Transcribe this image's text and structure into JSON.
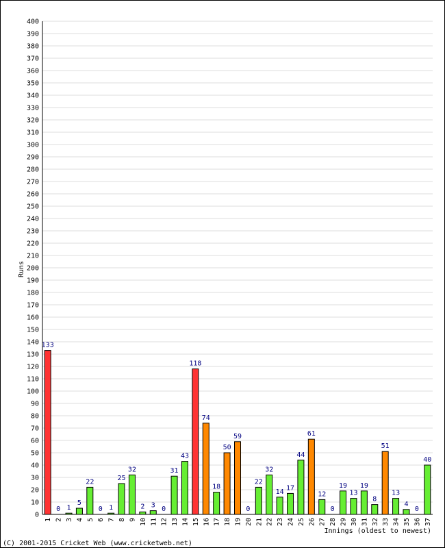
{
  "chart_data": {
    "type": "bar",
    "ylabel": "Runs",
    "xlabel": "Innings (oldest to newest)",
    "ylim": [
      0,
      400
    ],
    "ytick_step": 10,
    "grid": true,
    "categories": [
      "1",
      "2",
      "3",
      "4",
      "5",
      "6",
      "7",
      "8",
      "9",
      "10",
      "11",
      "12",
      "13",
      "14",
      "15",
      "16",
      "17",
      "18",
      "19",
      "20",
      "21",
      "22",
      "23",
      "24",
      "25",
      "26",
      "27",
      "28",
      "29",
      "30",
      "31",
      "32",
      "33",
      "34",
      "35",
      "36",
      "37"
    ],
    "values": [
      133,
      0,
      1,
      5,
      22,
      0,
      1,
      25,
      32,
      2,
      3,
      0,
      31,
      43,
      118,
      74,
      18,
      50,
      59,
      0,
      22,
      32,
      14,
      17,
      44,
      61,
      12,
      0,
      19,
      13,
      19,
      8,
      51,
      13,
      4,
      0,
      40
    ],
    "bar_colors": [
      "#f33",
      "#6e3",
      "#6e3",
      "#6e3",
      "#6e3",
      "#6e3",
      "#6e3",
      "#6e3",
      "#6e3",
      "#6e3",
      "#6e3",
      "#6e3",
      "#6e3",
      "#6e3",
      "#f33",
      "#f80",
      "#6e3",
      "#f80",
      "#f80",
      "#6e3",
      "#6e3",
      "#6e3",
      "#6e3",
      "#6e3",
      "#6e3",
      "#f80",
      "#6e3",
      "#6e3",
      "#6e3",
      "#6e3",
      "#6e3",
      "#6e3",
      "#f80",
      "#6e3",
      "#6e3",
      "#6e3",
      "#6e3"
    ],
    "colors": {
      "century": "#f33",
      "fifty": "#f80",
      "other": "#6e3",
      "label": "#000080",
      "grid": "#dddddd"
    }
  },
  "footer": {
    "copyright": "(C) 2001-2015 Cricket Web (www.cricketweb.net)"
  }
}
